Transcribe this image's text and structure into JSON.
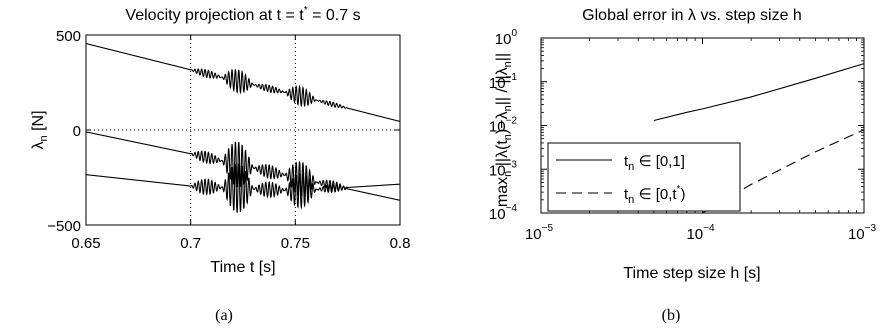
{
  "chart_data": [
    {
      "type": "line",
      "title": "Velocity projection at t = t* = 0.7 s",
      "title_main": "Velocity projection at t = t",
      "title_sup": "*",
      "title_tail": " = 0.7 s",
      "xlabel": "Time  t [s]",
      "ylabel_main": "λ",
      "ylabel_sub": "n",
      "ylabel_unit": " [N]",
      "xlim": [
        0.65,
        0.8
      ],
      "ylim": [
        -500,
        500
      ],
      "x_ticks": [
        0.65,
        0.7,
        0.75,
        0.8
      ],
      "x_tick_labels": [
        "0.65",
        "0.7",
        "0.75",
        "0.8"
      ],
      "y_ticks": [
        500,
        0,
        -500
      ],
      "y_tick_labels": [
        "500",
        "0",
        "−500"
      ],
      "reference_lines": {
        "vertical": [
          0.7,
          0.75
        ],
        "horizontal": [
          0
        ],
        "style": "dotted"
      },
      "series": [
        {
          "points": [
            [
              0.65,
              455
            ],
            [
              0.7,
              317
            ],
            [
              0.75,
              185
            ],
            [
              0.8,
              45
            ]
          ],
          "oscillation": {
            "start": 0.7,
            "end": 0.775,
            "amplitudes": [
              20,
              60,
              18,
              50,
              12
            ]
          }
        },
        {
          "points": [
            [
              0.65,
              -10
            ],
            [
              0.7,
              -125
            ],
            [
              0.75,
              -250
            ],
            [
              0.8,
              -370
            ]
          ],
          "oscillation": {
            "start": 0.7,
            "end": 0.775,
            "amplitudes": [
              30,
              120,
              35,
              90,
              25
            ]
          }
        },
        {
          "points": [
            [
              0.65,
              -235
            ],
            [
              0.7,
              -295
            ],
            [
              0.75,
              -320
            ],
            [
              0.8,
              -285
            ]
          ],
          "oscillation": {
            "start": 0.7,
            "end": 0.775,
            "amplitudes": [
              40,
              130,
              40,
              90,
              20
            ]
          }
        }
      ],
      "caption": "(a)"
    },
    {
      "type": "line",
      "title": "Global error in λ vs. step size h",
      "xlabel": "Time step size  h [s]",
      "ylabel": "max_n ||λ(t_n)−λ_n|| / ||λ_n||",
      "xscale": "log",
      "yscale": "log",
      "xlim": [
        1e-05,
        0.001
      ],
      "ylim": [
        0.0001,
        1
      ],
      "x_tick_exponents": [
        -5,
        -4,
        -3
      ],
      "y_tick_exponents": [
        0,
        -1,
        -2,
        -3,
        -4
      ],
      "series": [
        {
          "name": "t_n ∈ [0,1]",
          "style": "solid",
          "x": [
            5e-05,
            8e-05,
            0.0001,
            0.0002,
            0.0005,
            0.001
          ],
          "y": [
            0.013,
            0.02,
            0.024,
            0.045,
            0.12,
            0.26
          ]
        },
        {
          "name": "t_n ∈ [0,t*)",
          "style": "dashed",
          "x": [
            0.0001,
            0.0002,
            0.0005,
            0.001
          ],
          "y": [
            0.0001,
            0.00045,
            0.0025,
            0.008
          ]
        }
      ],
      "legend": {
        "placement": "lower-left",
        "entries": [
          {
            "t": "t",
            "sub": "n",
            "rest": " ∈ [0,1]"
          },
          {
            "t": "t",
            "sub": "n",
            "rest": " ∈ [0,t",
            "sup": "*",
            "tail": ")"
          }
        ]
      },
      "caption": "(b)"
    }
  ]
}
